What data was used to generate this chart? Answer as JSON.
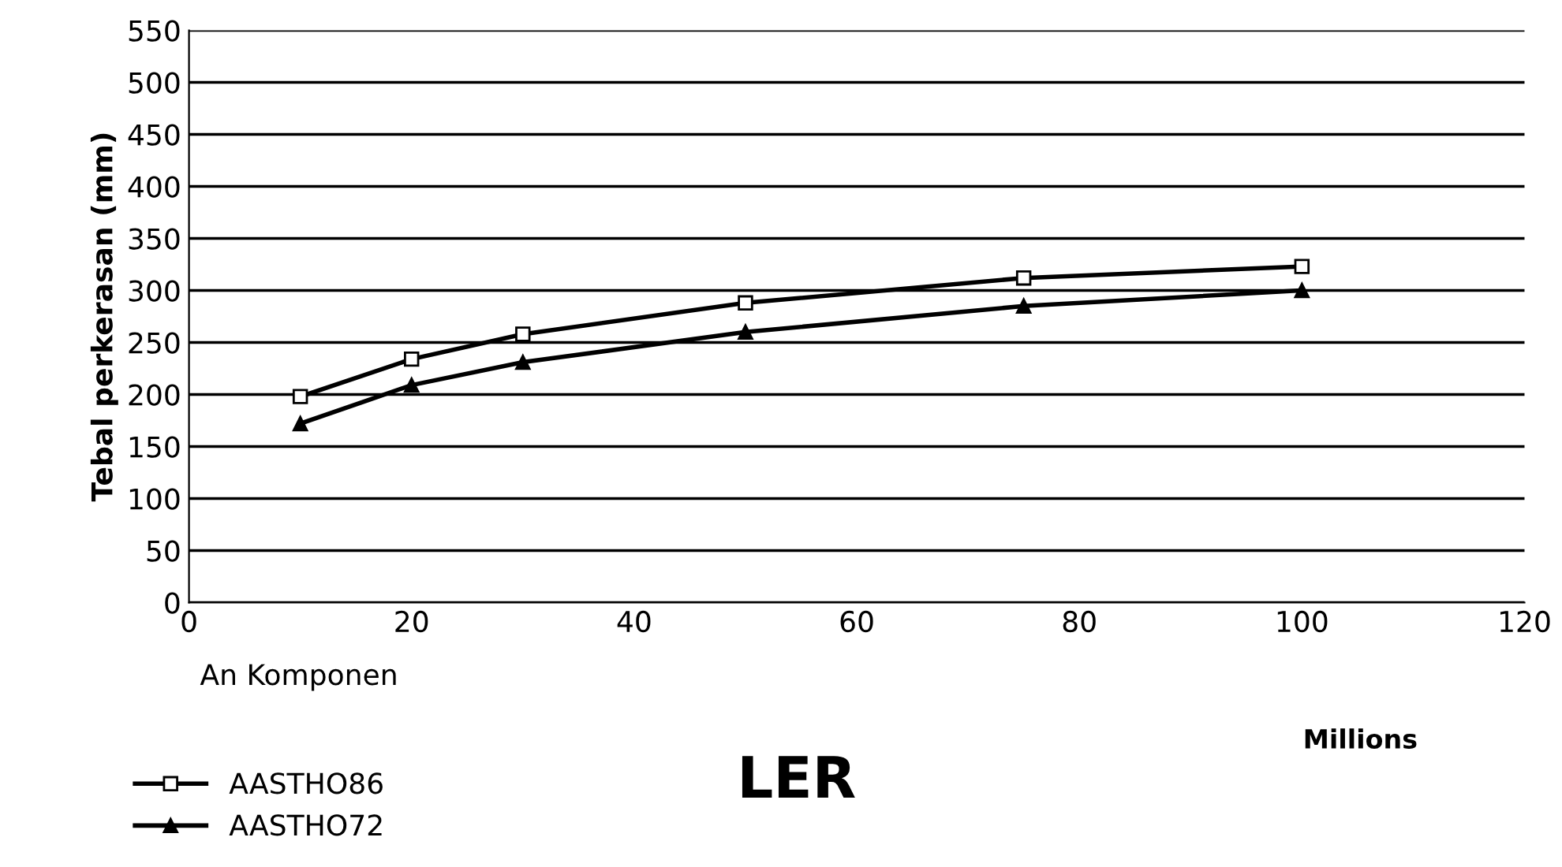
{
  "chart_data": {
    "type": "line",
    "title": "LER",
    "ylabel": "Tebal perkerasan (mm)",
    "xlabel": "Millions",
    "annotations": [
      "An Komponen"
    ],
    "series": [
      {
        "name": "AASTHO86",
        "color": "#000000",
        "marker": "square",
        "x": [
          10,
          20,
          30,
          50,
          75,
          100
        ],
        "values": [
          198,
          234,
          258,
          288,
          312,
          323
        ]
      },
      {
        "name": "AASTHO72",
        "color": "#000000",
        "marker": "triangle",
        "x": [
          10,
          20,
          30,
          50,
          75,
          100
        ],
        "values": [
          172,
          209,
          231,
          260,
          285,
          300
        ]
      }
    ],
    "xlim": [
      0,
      120
    ],
    "xticks": [
      0,
      20,
      40,
      60,
      80,
      100,
      120
    ],
    "ylim": [
      0,
      550
    ],
    "yticks": [
      0,
      50,
      100,
      150,
      200,
      250,
      300,
      350,
      400,
      450,
      500,
      550
    ],
    "grid": "y",
    "legend": "bottom left",
    "line_style": "solid"
  }
}
